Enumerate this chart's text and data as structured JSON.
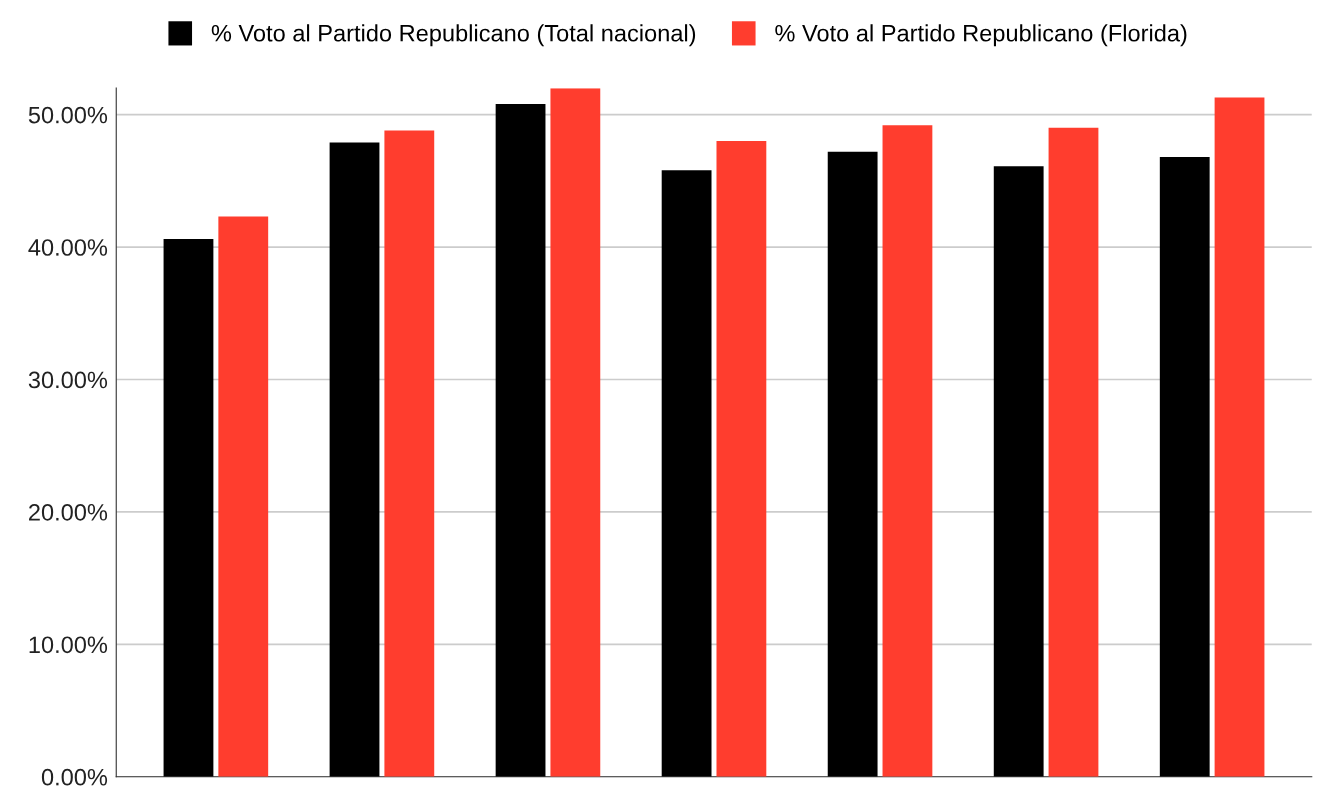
{
  "chart_data": {
    "type": "bar",
    "categories": [
      null,
      null,
      null,
      null,
      null,
      null,
      null
    ],
    "series": [
      {
        "name": "% Voto al Partido Republicano (Total nacional)",
        "color": "#000000",
        "values": [
          40.6,
          47.9,
          50.8,
          45.8,
          47.2,
          46.1,
          46.8
        ]
      },
      {
        "name": "% Voto al Partido Republicano (Florida)",
        "color": "#ff3d2e",
        "values": [
          42.3,
          48.8,
          52.0,
          48.0,
          49.2,
          49.0,
          51.3
        ]
      }
    ],
    "ylim": [
      0,
      52
    ],
    "yticks": [
      {
        "value": 0,
        "label": "0.00%"
      },
      {
        "value": 10,
        "label": "10.00%"
      },
      {
        "value": 20,
        "label": "20.00%"
      },
      {
        "value": 30,
        "label": "30.00%"
      },
      {
        "value": 40,
        "label": "40.00%"
      },
      {
        "value": 50,
        "label": "50.00%"
      }
    ],
    "grid": "y",
    "legend": "top",
    "tick_labels": "y"
  }
}
